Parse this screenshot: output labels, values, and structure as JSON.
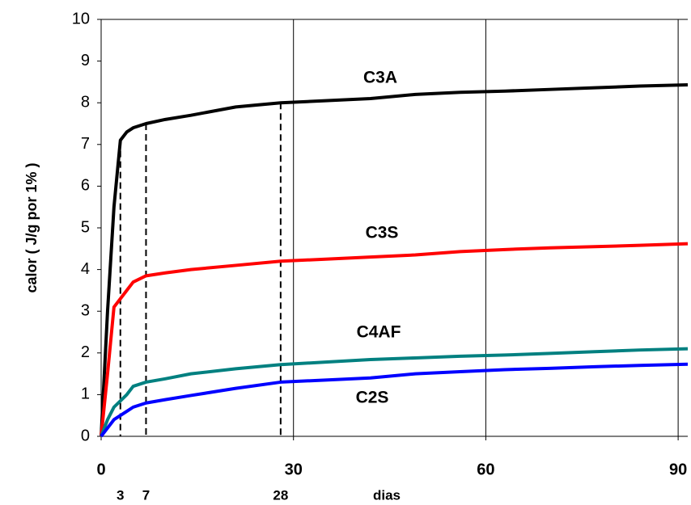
{
  "chart_data": {
    "type": "line",
    "y_label": "calor ( J/g por 1% )",
    "x_label": "dias",
    "xlim": [
      0,
      91.5
    ],
    "ylim": [
      0,
      10
    ],
    "xticks": [
      0,
      30,
      60,
      90
    ],
    "yticks": [
      0,
      1,
      2,
      3,
      4,
      5,
      6,
      7,
      8,
      9,
      10
    ],
    "grid": "x",
    "x": [
      0,
      1,
      2,
      3,
      4,
      5,
      7,
      10,
      14,
      21,
      28,
      35,
      42,
      49,
      56,
      63,
      70,
      77,
      84,
      91.5
    ],
    "series": [
      {
        "name": "C3A",
        "color": "#000000",
        "values": [
          0,
          3,
          5.5,
          7.1,
          7.3,
          7.4,
          7.5,
          7.6,
          7.7,
          7.9,
          8.0,
          8.05,
          8.1,
          8.2,
          8.25,
          8.28,
          8.32,
          8.36,
          8.4,
          8.43
        ]
      },
      {
        "name": "C3S",
        "color": "#ff0000",
        "values": [
          0,
          1.5,
          3.1,
          3.3,
          3.5,
          3.7,
          3.85,
          3.92,
          4.0,
          4.1,
          4.2,
          4.25,
          4.3,
          4.35,
          4.43,
          4.48,
          4.52,
          4.55,
          4.58,
          4.62
        ]
      },
      {
        "name": "C4AF",
        "color": "#008080",
        "values": [
          0,
          0.4,
          0.7,
          0.85,
          1.0,
          1.2,
          1.3,
          1.38,
          1.5,
          1.62,
          1.72,
          1.78,
          1.84,
          1.88,
          1.92,
          1.95,
          1.99,
          2.03,
          2.07,
          2.1
        ]
      },
      {
        "name": "C2S",
        "color": "#0000ff",
        "values": [
          0,
          0.2,
          0.4,
          0.5,
          0.6,
          0.7,
          0.8,
          0.88,
          0.98,
          1.15,
          1.3,
          1.35,
          1.4,
          1.5,
          1.55,
          1.6,
          1.63,
          1.67,
          1.7,
          1.73
        ]
      }
    ],
    "reference_lines": [
      {
        "x": 3,
        "y": 7.1
      },
      {
        "x": 7,
        "y": 7.5
      },
      {
        "x": 28,
        "y": 8.0
      }
    ]
  }
}
